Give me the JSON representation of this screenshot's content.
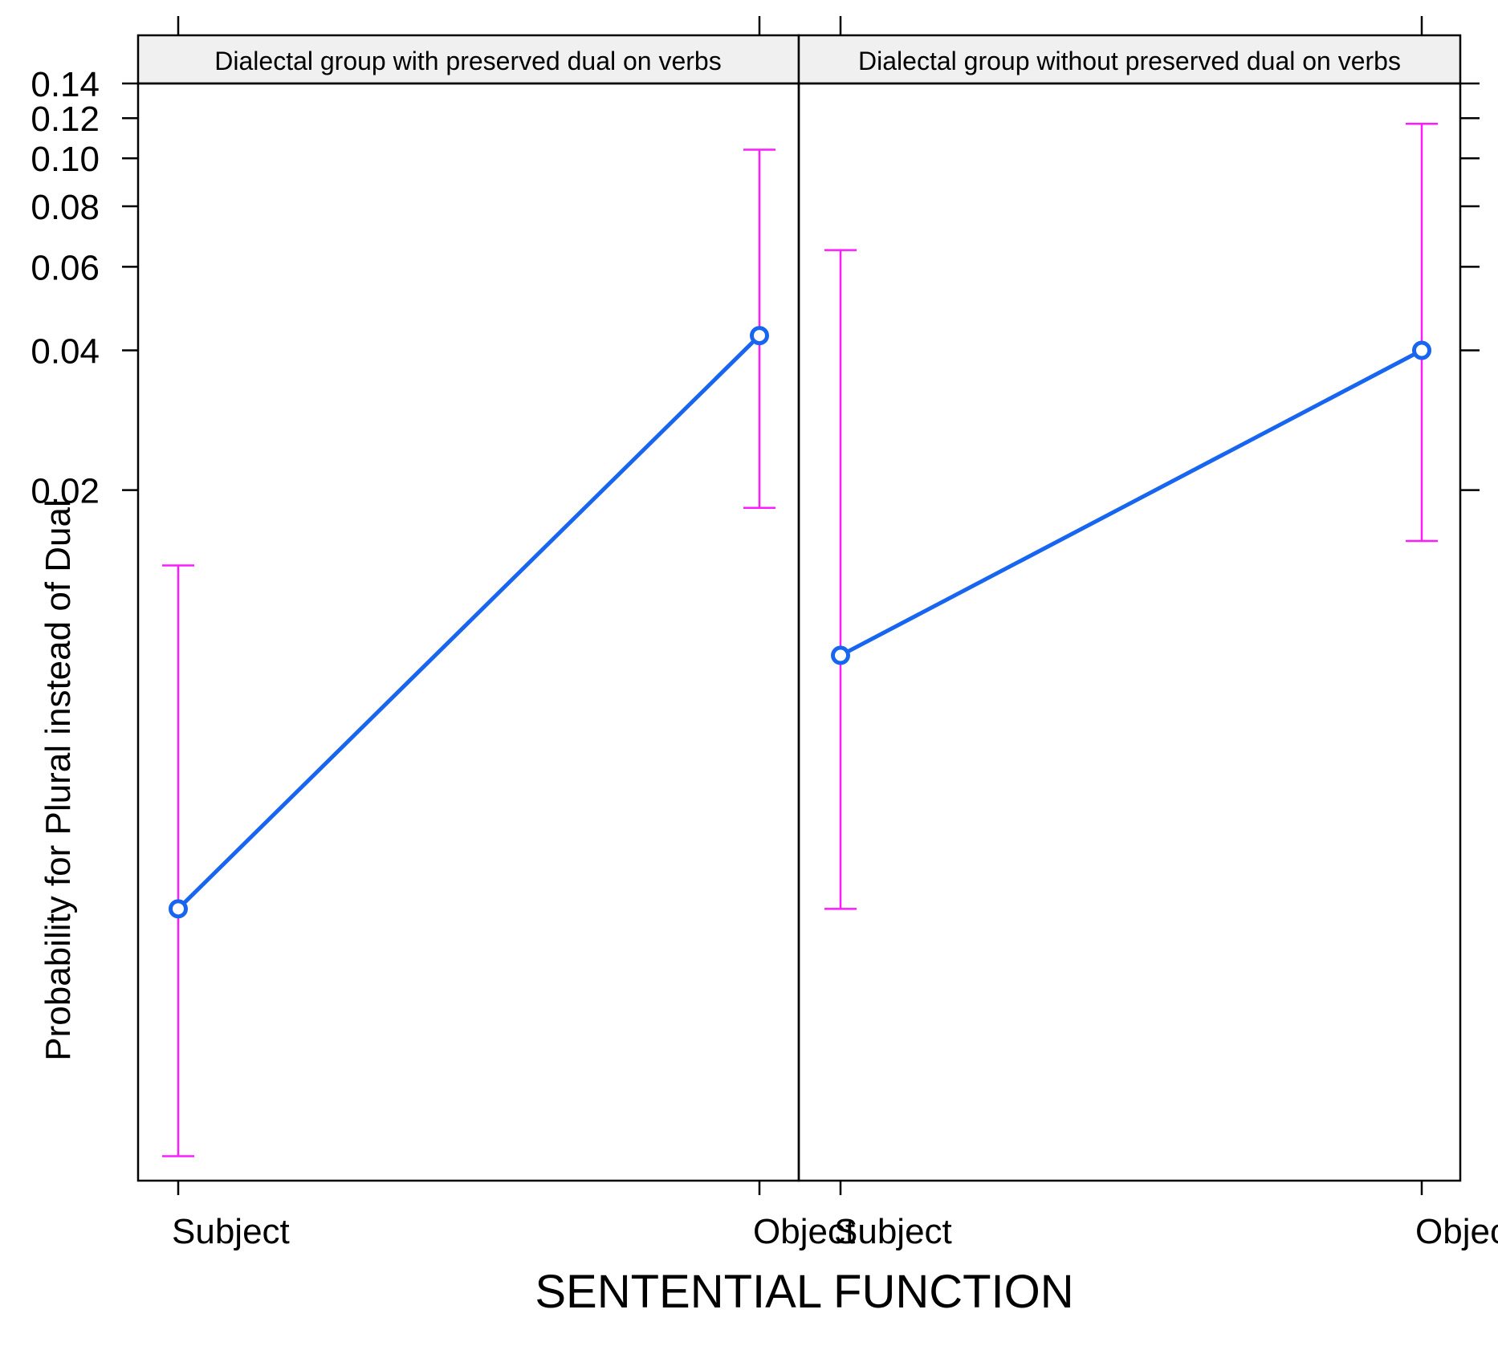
{
  "chart_data": {
    "type": "line",
    "title": "",
    "xlabel": "SENTENTIAL FUNCTION",
    "ylabel": "Probability for Plural instead of Dual",
    "y_scale": "logit",
    "ylim": [
      0.0006,
      0.14
    ],
    "y_ticks": [
      0.02,
      0.04,
      0.06,
      0.08,
      0.1,
      0.12,
      0.14
    ],
    "y_tick_labels": [
      "0.02",
      "0.04",
      "0.06",
      "0.08",
      "0.10",
      "0.12",
      "0.14"
    ],
    "categories": [
      "Subject",
      "Object"
    ],
    "grid": false,
    "legend": "none",
    "colors": {
      "line": "#1866f0",
      "error_bar": "#ff1aff",
      "strip": "#f0f0f0"
    },
    "panels": [
      {
        "strip": "Dialectal group with preserved dual on verbs",
        "values": [
          0.0024,
          0.043
        ],
        "lower": [
          0.00068,
          0.0183
        ],
        "upper": [
          0.0137,
          0.104
        ]
      },
      {
        "strip": "Dialectal group without preserved dual on verbs",
        "values": [
          0.0087,
          0.04
        ],
        "lower": [
          0.0024,
          0.0155
        ],
        "upper": [
          0.065,
          0.117
        ]
      }
    ]
  }
}
